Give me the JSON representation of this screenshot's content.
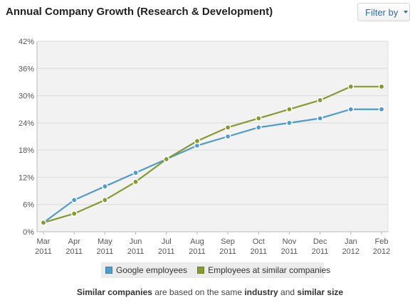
{
  "header": {
    "title": "Annual Company Growth (Research & Development)",
    "filter_label": "Filter by",
    "filter_icon": "chevron-down-icon"
  },
  "colors": {
    "google": "#4f9ccb",
    "similar": "#869a30",
    "plot_background": "#f2f2f2",
    "grid": "#dcdcdc"
  },
  "chart_data": {
    "type": "line",
    "title": "Annual Company Growth (Research & Development)",
    "x_month": [
      "Mar",
      "Apr",
      "May",
      "Jun",
      "Jul",
      "Aug",
      "Sep",
      "Oct",
      "Nov",
      "Dec",
      "Jan",
      "Feb"
    ],
    "x_year": [
      "2011",
      "2011",
      "2011",
      "2011",
      "2011",
      "2011",
      "2011",
      "2011",
      "2011",
      "2011",
      "2012",
      "2012"
    ],
    "y_ticks": [
      "0%",
      "6%",
      "12%",
      "18%",
      "24%",
      "30%",
      "36%",
      "42%"
    ],
    "ylim": [
      0,
      42
    ],
    "y_unit": "%",
    "grid": true,
    "legend_position": "bottom",
    "series": [
      {
        "name": "Google employees",
        "color": "#4f9ccb",
        "values": [
          2,
          7,
          10,
          13,
          16,
          19,
          21,
          23,
          24,
          25,
          27,
          27
        ]
      },
      {
        "name": "Employees at similar companies",
        "color": "#869a30",
        "values": [
          2,
          4,
          7,
          11,
          16,
          20,
          23,
          25,
          27,
          29,
          32,
          32
        ]
      }
    ]
  },
  "footnote": {
    "part1": "Similar companies",
    "part2": " are based on the same ",
    "part3": "industry",
    "part4": " and ",
    "part5": "similar size"
  }
}
